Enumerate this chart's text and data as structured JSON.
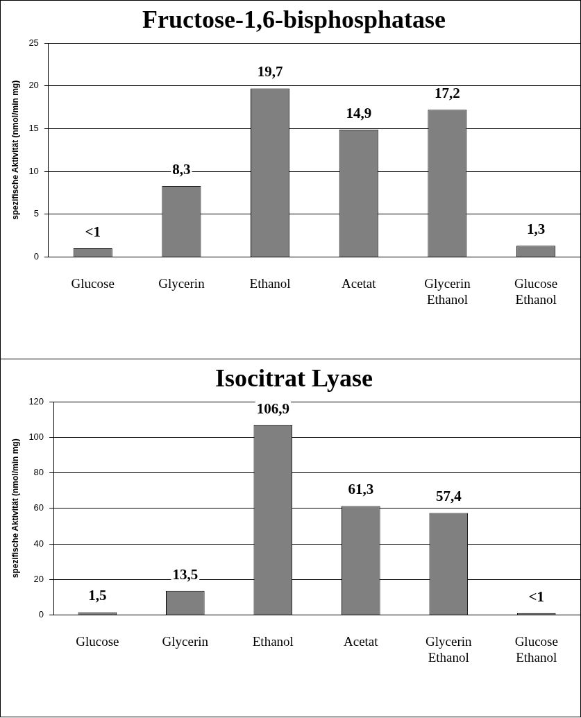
{
  "chart_data": [
    {
      "type": "bar",
      "title": "Fructose-1,6-bisphosphatase",
      "ylabel": "spezifische Aktivität (nmol/min mg)",
      "categories": [
        "Glucose",
        "Glycerin",
        "Ethanol",
        "Acetat",
        "Glycerin Ethanol",
        "Glucose Ethanol"
      ],
      "values": [
        1,
        8.3,
        19.7,
        14.9,
        17.2,
        1.3
      ],
      "value_labels": [
        "<1",
        "8,3",
        "19,7",
        "14,9",
        "17,2",
        "1,3"
      ],
      "color": "#808080",
      "ylim": [
        0,
        25
      ],
      "yticks": [
        0,
        5,
        10,
        15,
        20,
        25
      ],
      "grid": "y",
      "legend": false
    },
    {
      "type": "bar",
      "title": "Isocitrat Lyase",
      "ylabel": "spezifische Aktivität (nmol/min mg)",
      "categories": [
        "Glucose",
        "Glycerin",
        "Ethanol",
        "Acetat",
        "Glycerin Ethanol",
        "Glucose Ethanol"
      ],
      "values": [
        1.5,
        13.5,
        106.9,
        61.3,
        57.4,
        1
      ],
      "value_labels": [
        "1,5",
        "13,5",
        "106,9",
        "61,3",
        "57,4",
        "<1"
      ],
      "color": "#808080",
      "ylim": [
        0,
        120
      ],
      "yticks": [
        0,
        20,
        40,
        60,
        80,
        100,
        120
      ],
      "grid": "y",
      "legend": false
    }
  ]
}
